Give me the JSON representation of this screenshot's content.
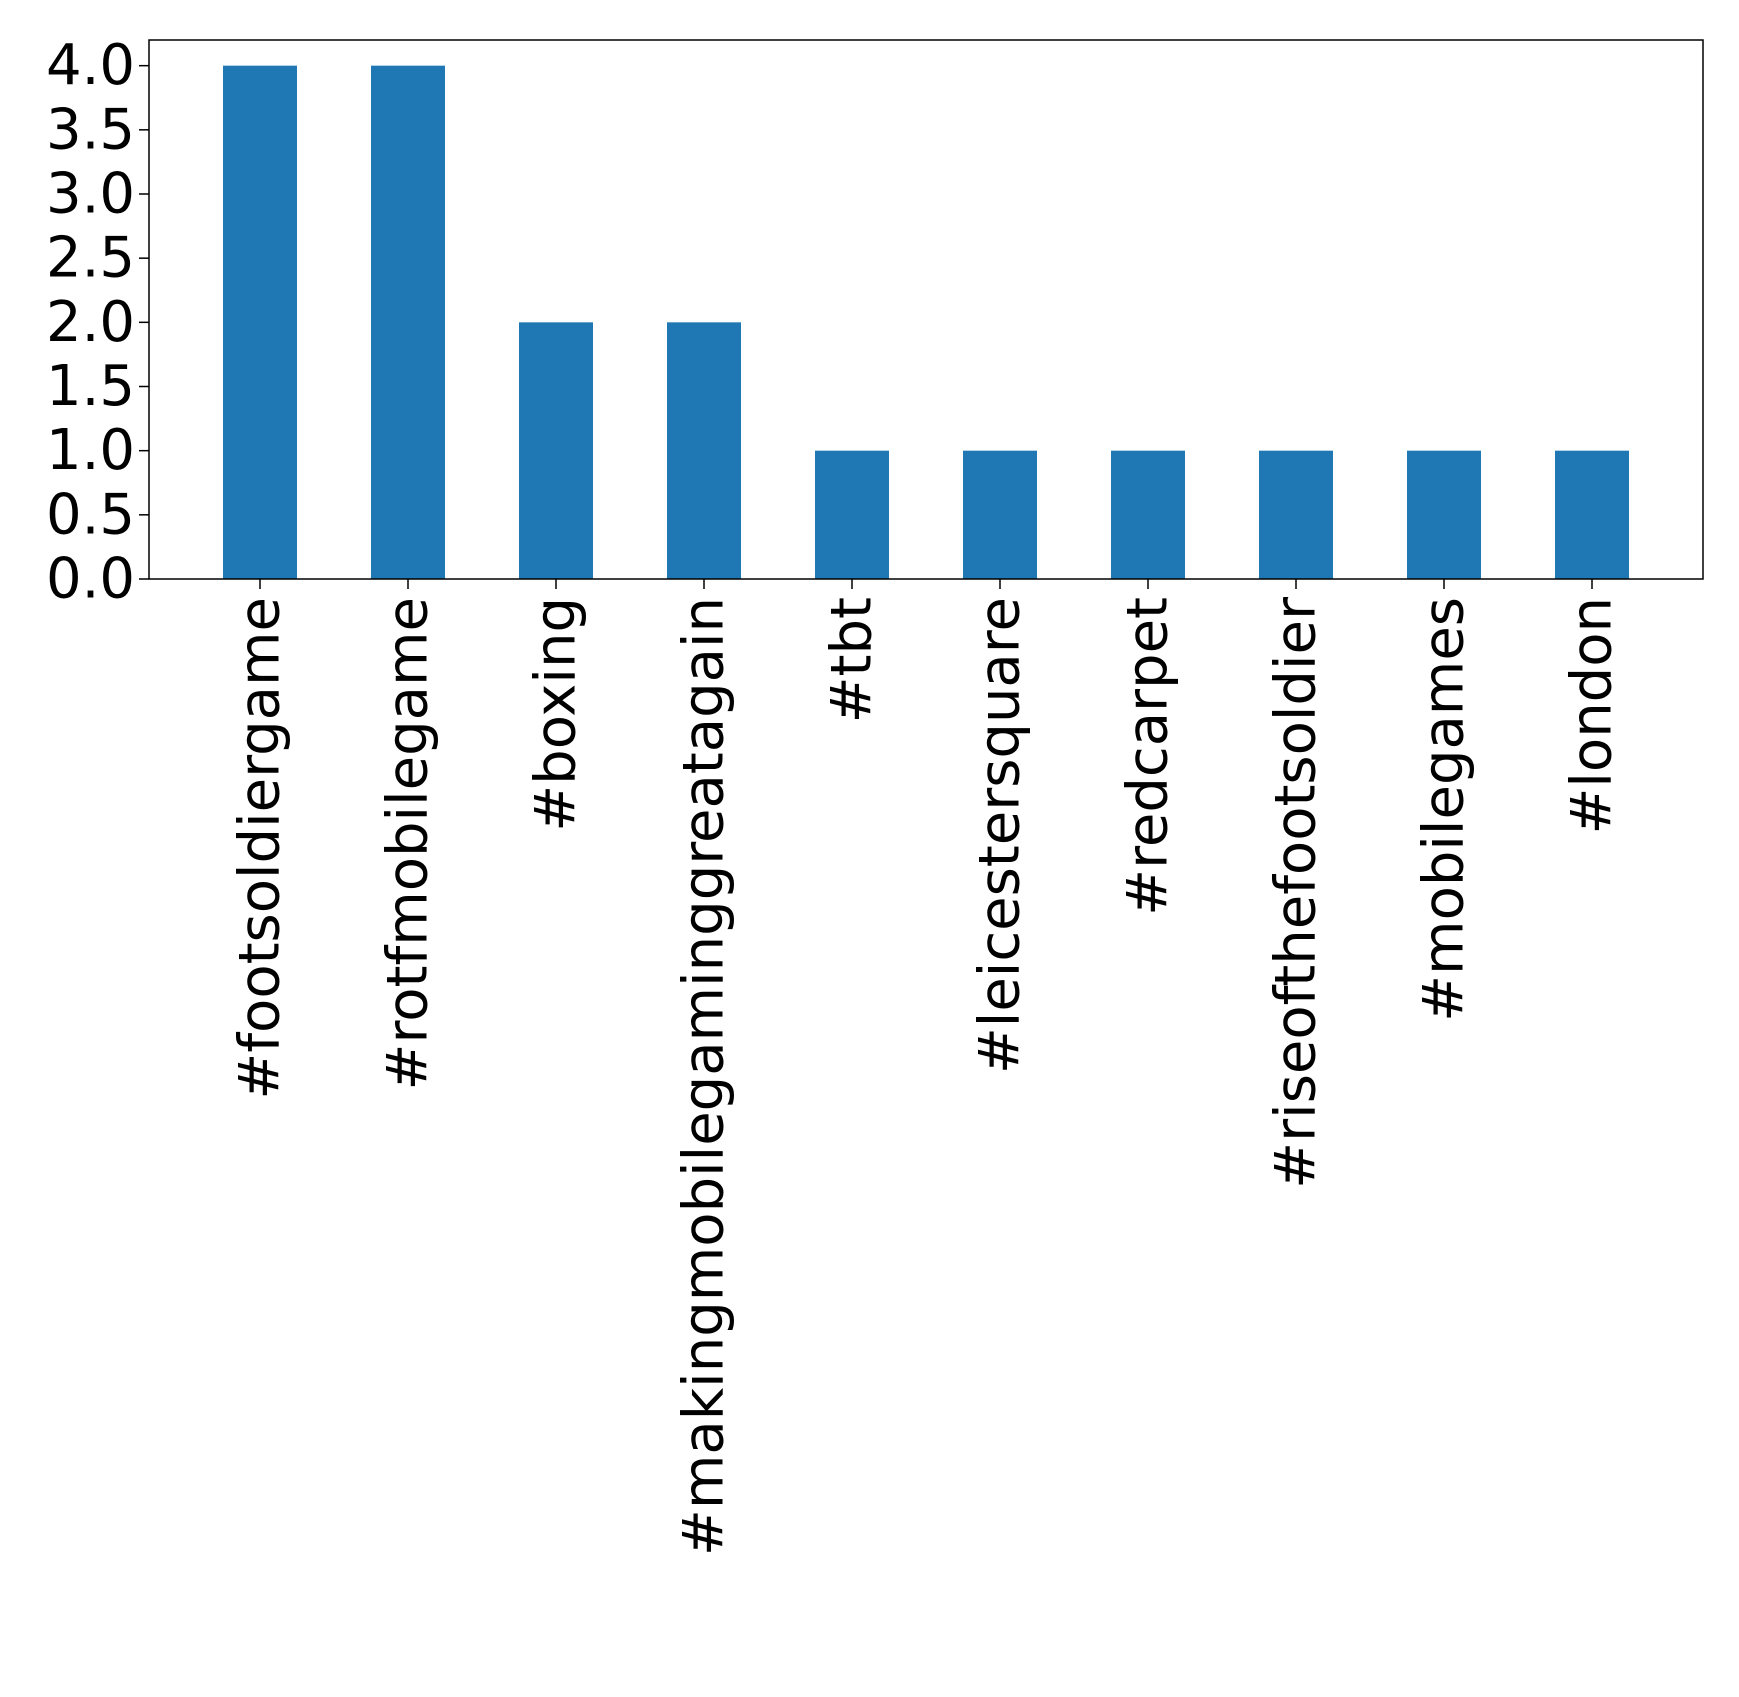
{
  "chart_data": {
    "type": "bar",
    "title": "",
    "xlabel": "",
    "ylabel": "",
    "categories": [
      "#footsoldiergame",
      "#rotfmobilegame",
      "#boxing",
      "#makingmobilegaminggreatagain",
      "#tbt",
      "#leicestersquare",
      "#redcarpet",
      "#riseofthefootsoldier",
      "#mobilegames",
      "#london"
    ],
    "values": [
      4,
      4,
      2,
      2,
      1,
      1,
      1,
      1,
      1,
      1
    ],
    "ylim": [
      0,
      4.2
    ],
    "yticks": [
      "0.0",
      "0.5",
      "1.0",
      "1.5",
      "2.0",
      "2.5",
      "3.0",
      "3.5",
      "4.0"
    ],
    "bar_color": "#1f77b4",
    "grid": false,
    "legend": "none"
  }
}
